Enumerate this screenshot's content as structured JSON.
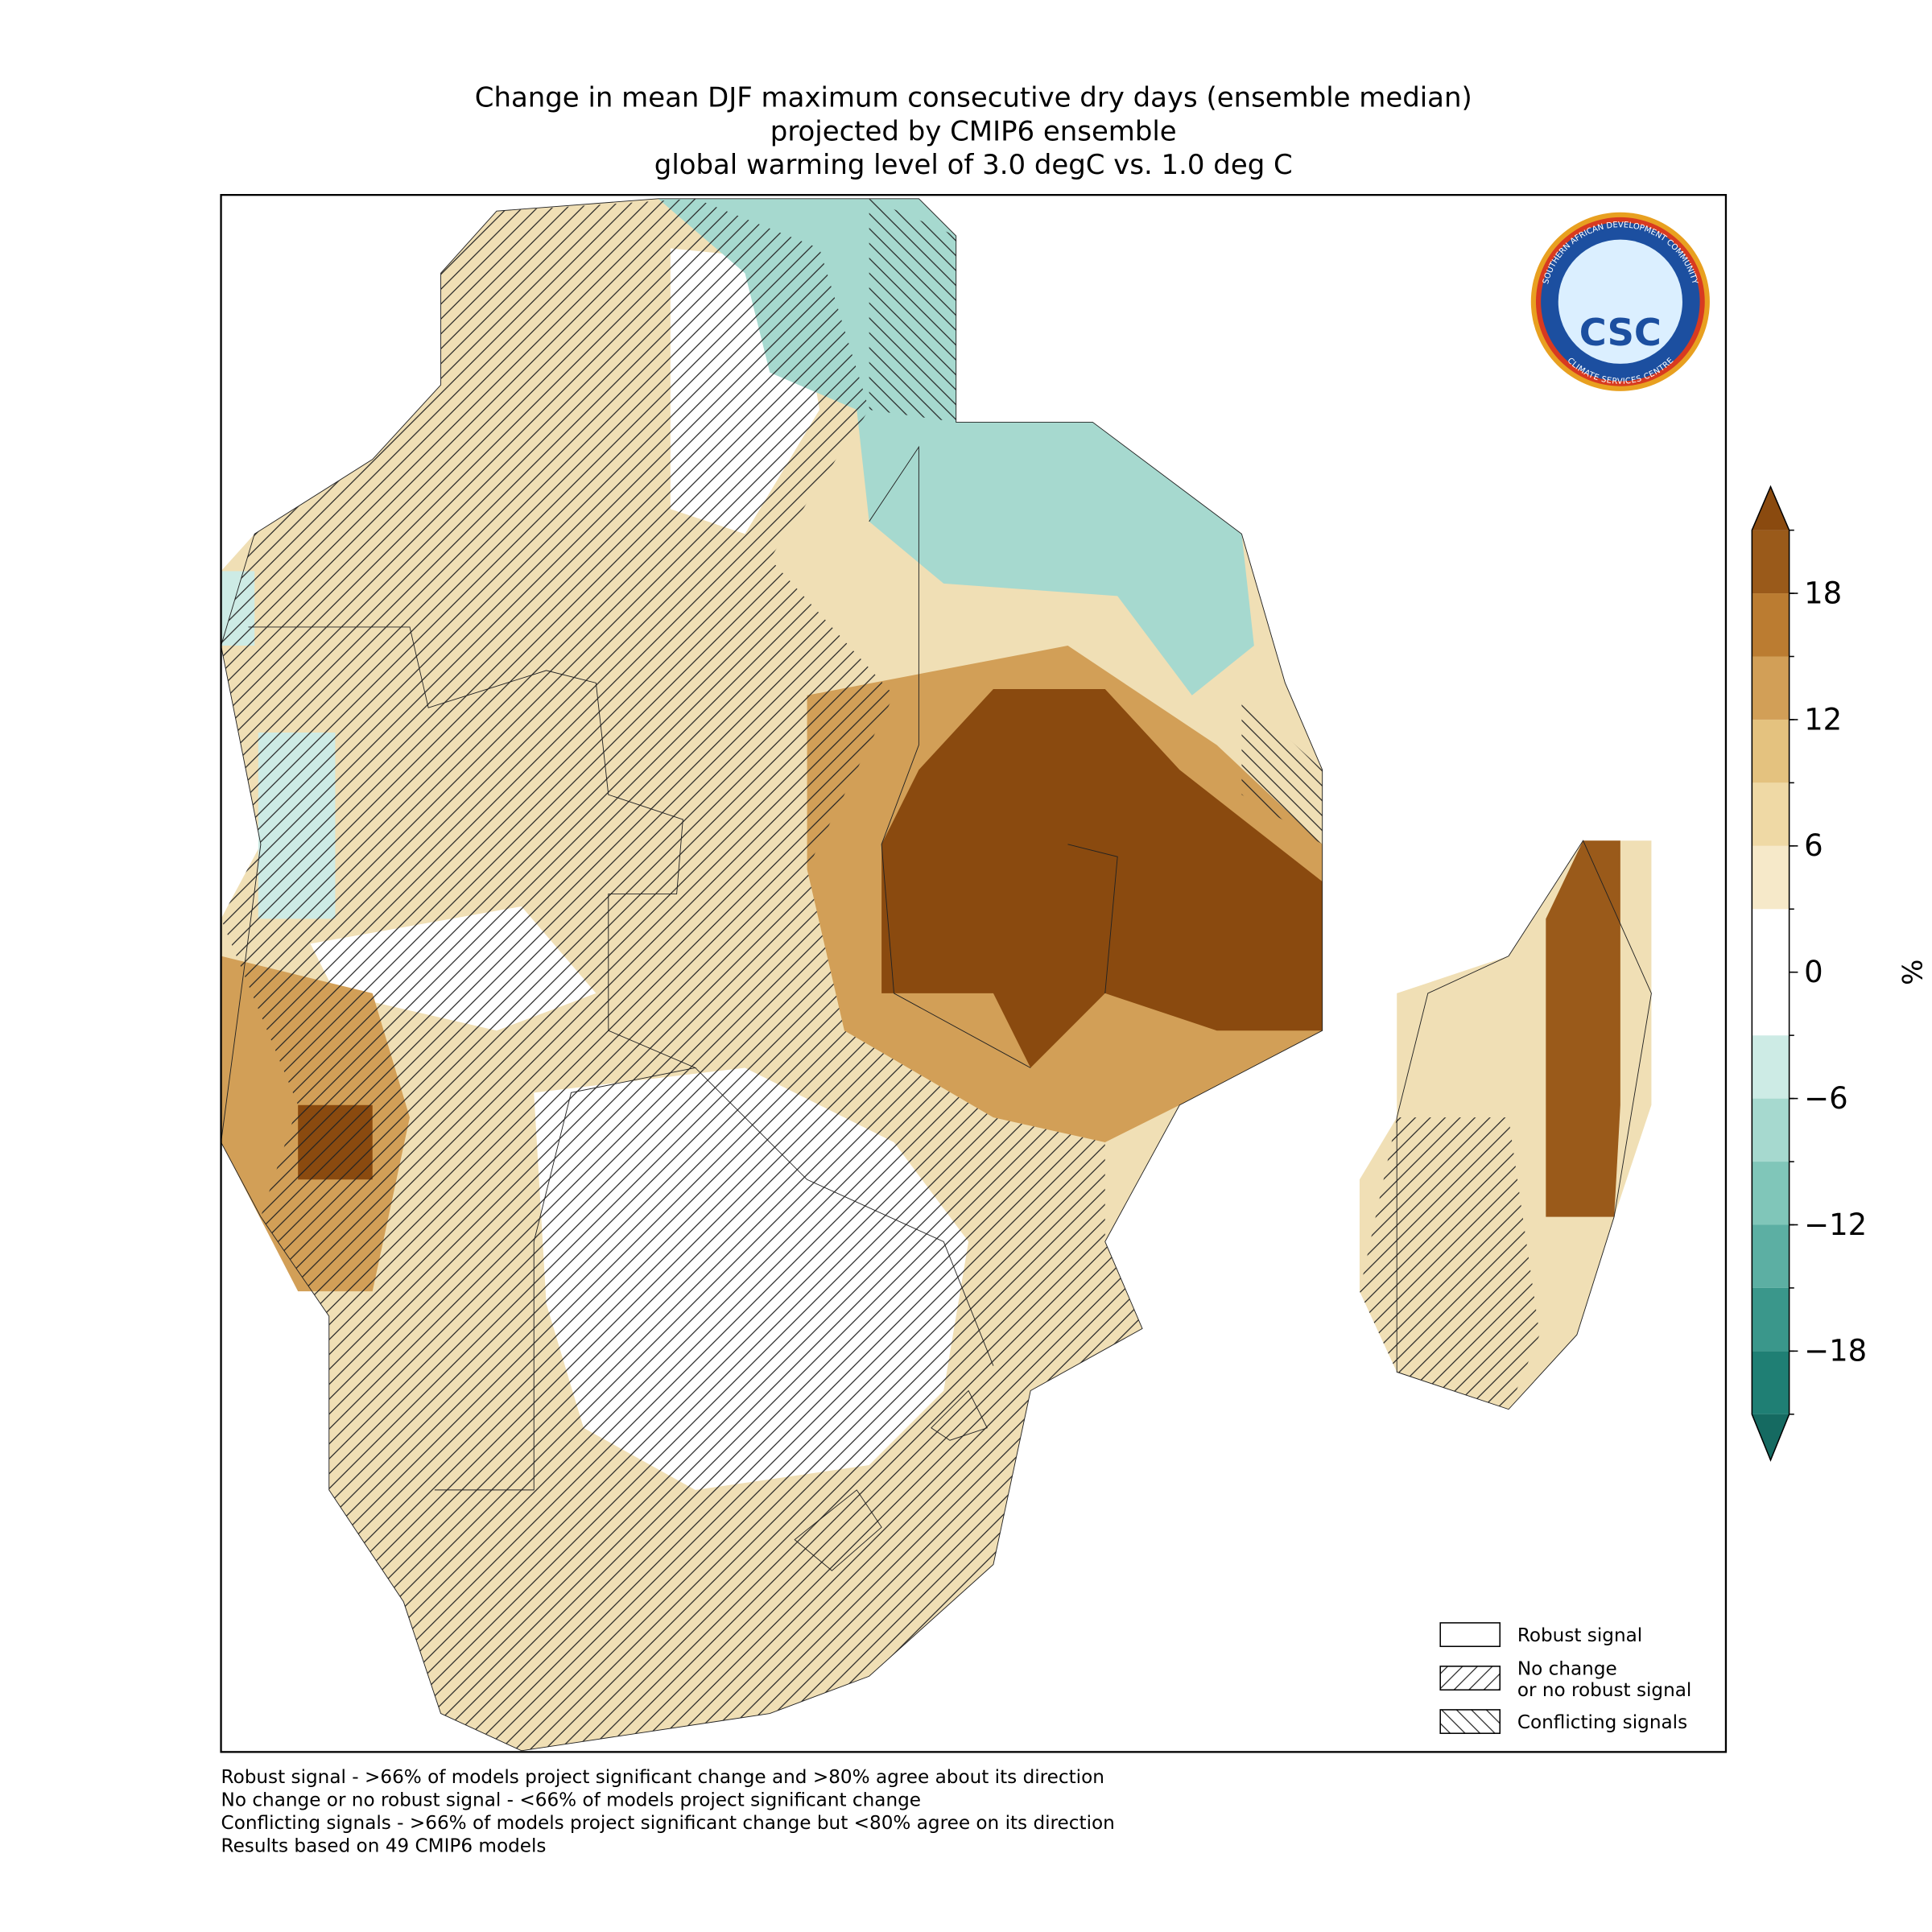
{
  "title": [
    "Change in mean DJF maximum consecutive dry days (ensemble median)",
    "projected by CMIP6 ensemble",
    "global warming level of 3.0 degC vs. 1.0 deg C"
  ],
  "colorbar": {
    "label": "%",
    "lim": [
      -21,
      21
    ],
    "ticks": [
      {
        "value": -18,
        "label": "−18"
      },
      {
        "value": -12,
        "label": "−12"
      },
      {
        "value": -6,
        "label": "−6"
      },
      0,
      6,
      12,
      18
    ],
    "boundaries": [
      -21,
      -18,
      -15,
      -12,
      -9,
      -6,
      -3,
      0,
      3,
      6,
      9,
      12,
      15,
      18,
      21
    ],
    "colors": [
      "#1f7f74",
      "#3a978b",
      "#5caf a3",
      "#80c6b9",
      "#a6d9cf",
      "#cdebe5",
      "#ffffff",
      "#ffffff",
      "#f6e9c9",
      "#efd9a5",
      "#e4c27f",
      "#d29f57",
      "#bb7c31",
      "#9a5a1a"
    ],
    "under": "#156a61",
    "over": "#8a4a0f"
  },
  "legend": [
    {
      "lines": [
        "Robust signal"
      ],
      "hatch": "none"
    },
    {
      "lines": [
        "No change",
        "or no robust signal"
      ],
      "hatch": "/"
    },
    {
      "lines": [
        "Conflicting signals"
      ],
      "hatch": "\\"
    }
  ],
  "footnotes": [
    "Robust signal - >66% of models project significant change and >80% agree about its direction",
    "No change or no robust signal - <66% of models project significant change",
    "Conflicting signals - >66% of models project significant change but <80% agree on its direction",
    "Results based on 49 CMIP6 models"
  ],
  "logo": {
    "top": "SOUTHERN AFRICAN DEVELOPMENT COMMUNITY",
    "bottom": "CLIMATE SERVICES CENTRE",
    "mark": "CSC"
  }
}
